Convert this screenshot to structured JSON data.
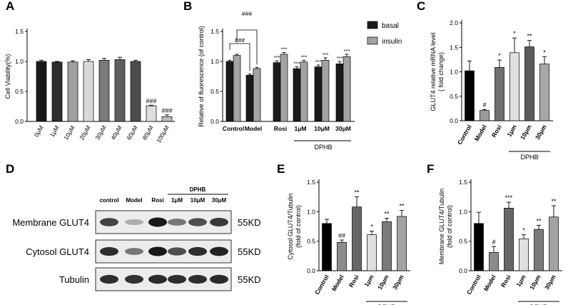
{
  "panels": [
    {
      "letter": "A",
      "type": "bar",
      "ylabel": "Cell Viability(%)",
      "ylim": [
        0,
        1.5
      ],
      "yticks": [
        "0.0",
        "0.5",
        "1.0",
        "1.5"
      ],
      "categories": [
        "0μM",
        "1μM",
        "10μM",
        "20μM",
        "30μM",
        "40μM",
        "60μM",
        "80μM",
        "100μM"
      ],
      "values": [
        1.0,
        0.99,
        0.99,
        1.0,
        1.02,
        1.03,
        1.0,
        0.26,
        0.08
      ],
      "errors": [
        0.02,
        0.01,
        0.02,
        0.03,
        0.03,
        0.04,
        0.02,
        0.01,
        0.03
      ],
      "colors": [
        "#1a1a1a",
        "#2e2e2e",
        "#a0a0a0",
        "#d9d9d9",
        "#7a7a7a",
        "#5e5e5e",
        "#4d4d4d",
        "#dedede",
        "#bdbdbd"
      ],
      "annotations": [
        "",
        "",
        "",
        "",
        "",
        "",
        "",
        "###",
        "###"
      ]
    },
    {
      "letter": "B",
      "type": "grouped-bar",
      "ylabel": "Relative of fluorescence (of control)",
      "ylim": [
        0,
        1.5
      ],
      "yticks": [
        "0.0",
        "0.5",
        "1.0",
        "1.5"
      ],
      "categories": [
        "Control",
        "Model",
        "Rosi",
        "1μM",
        "10μM",
        "30μM"
      ],
      "series": [
        {
          "name": "basal",
          "color": "#1a1a1a",
          "values": [
            1.0,
            0.77,
            0.98,
            0.88,
            0.91,
            0.96
          ],
          "errors": [
            0.02,
            0.02,
            0.03,
            0.03,
            0.03,
            0.04
          ],
          "annotations": [
            "",
            "",
            "***",
            "***",
            "***",
            "***"
          ]
        },
        {
          "name": "insulin",
          "color": "#a3a3a3",
          "values": [
            1.1,
            0.88,
            1.12,
            0.99,
            1.02,
            1.08
          ],
          "errors": [
            0.02,
            0.02,
            0.03,
            0.03,
            0.04,
            0.04
          ],
          "annotations": [
            "",
            "",
            "***",
            "***",
            "***",
            "***"
          ]
        }
      ],
      "brackets": [
        "###",
        "###"
      ],
      "group_label": "DPHB"
    },
    {
      "letter": "C",
      "type": "bar",
      "ylabel": "GLUT4 relative mRNA level",
      "ylabel2": "( fold change)",
      "ylim": [
        0,
        2.0
      ],
      "yticks": [
        "0.0",
        "0.5",
        "1.0",
        "1.5",
        "2.0"
      ],
      "categories": [
        "Control",
        "Model",
        "Rosi",
        "1μm",
        "10μm",
        "30μm"
      ],
      "values": [
        1.02,
        0.21,
        1.09,
        1.39,
        1.51,
        1.16
      ],
      "errors": [
        0.2,
        0.02,
        0.15,
        0.3,
        0.13,
        0.15
      ],
      "colors": [
        "#000000",
        "#9a9a9a",
        "#6f6f6f",
        "#e0e0e0",
        "#5a5a5a",
        "#a8a8a8"
      ],
      "annotations": [
        "",
        "#",
        "*",
        "*",
        "**",
        "*"
      ],
      "group_label": "DPHB"
    },
    {
      "letter": "E",
      "type": "bar",
      "ylabel": "Cytosol GLUT4/Tubulin",
      "ylabel2": "(fold of control)",
      "ylim": [
        0,
        1.5
      ],
      "yticks": [
        "0.0",
        "0.5",
        "1.0",
        "1.5"
      ],
      "categories": [
        "Control",
        "Model",
        "Rosi",
        "1μm",
        "10μm",
        "30μm"
      ],
      "values": [
        0.8,
        0.48,
        1.08,
        0.61,
        0.83,
        0.92
      ],
      "errors": [
        0.07,
        0.04,
        0.17,
        0.06,
        0.06,
        0.1
      ],
      "colors": [
        "#000000",
        "#8c8c8c",
        "#666666",
        "#e0e0e0",
        "#7a7a7a",
        "#a3a3a3"
      ],
      "annotations": [
        "",
        "##",
        "**",
        "*",
        "**",
        "**"
      ],
      "group_label": "DPHB"
    },
    {
      "letter": "F",
      "type": "bar",
      "ylabel": "Membrane GLUT4/Tubulin",
      "ylabel2": "(fold of control)",
      "ylim": [
        0,
        1.5
      ],
      "yticks": [
        "0.0",
        "0.5",
        "1.0",
        "1.5"
      ],
      "categories": [
        "Control",
        "Model",
        "Rosi",
        "1μm",
        "10μm",
        "30μm"
      ],
      "values": [
        0.8,
        0.31,
        1.06,
        0.54,
        0.7,
        0.91
      ],
      "errors": [
        0.19,
        0.1,
        0.1,
        0.07,
        0.07,
        0.19
      ],
      "colors": [
        "#000000",
        "#8c8c8c",
        "#666666",
        "#e0e0e0",
        "#7a7a7a",
        "#a3a3a3"
      ],
      "annotations": [
        "",
        "#",
        "***",
        "*",
        "**",
        "**"
      ],
      "group_label": "DPHB"
    }
  ],
  "blot": {
    "letter": "D",
    "lanes": [
      "control",
      "Model",
      "Rosi",
      "1μM",
      "10μM",
      "30μM"
    ],
    "group_label": "DPHB",
    "rows": [
      {
        "label": "Membrane GLUT4",
        "size": "55KD",
        "intensity": [
          0.8,
          0.3,
          1.0,
          0.55,
          0.75,
          0.85
        ]
      },
      {
        "label": "Cytosol GLUT4",
        "size": "55KD",
        "intensity": [
          0.9,
          0.55,
          1.0,
          0.75,
          0.9,
          0.95
        ]
      },
      {
        "label": "Tubulin",
        "size": "55KD",
        "intensity": [
          0.9,
          0.88,
          0.92,
          0.9,
          0.9,
          0.92
        ]
      }
    ]
  }
}
